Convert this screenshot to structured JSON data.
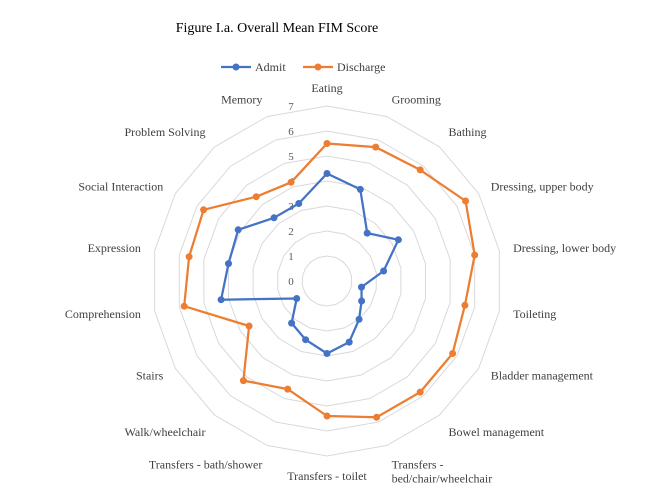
{
  "chart_data": {
    "type": "radar",
    "title": "Figure I.a. Overall Mean FIM Score",
    "categories": [
      [
        "Eating"
      ],
      [
        "Grooming"
      ],
      [
        "Bathing"
      ],
      [
        "Dressing, upper body"
      ],
      [
        "Dressing, lower body"
      ],
      [
        "Toileting"
      ],
      [
        "Bladder management"
      ],
      [
        "Bowel management"
      ],
      [
        "Transfers -",
        "bed/chair/wheelchair"
      ],
      [
        "Transfers - toilet"
      ],
      [
        "Transfers - bath/shower"
      ],
      [
        "Walk/wheelchair"
      ],
      [
        "Stairs"
      ],
      [
        "Comprehension"
      ],
      [
        "Expression"
      ],
      [
        "Social Interaction"
      ],
      [
        "Problem Solving"
      ],
      [
        "Memory"
      ]
    ],
    "ticks": [
      "0",
      "1",
      "2",
      "3",
      "4",
      "5",
      "6",
      "7"
    ],
    "rlim": [
      0,
      7
    ],
    "legend_position": "top",
    "series": [
      {
        "name": "Admit",
        "color": "#4472C4",
        "values": [
          4.3,
          3.9,
          2.5,
          3.3,
          2.3,
          1.4,
          1.6,
          2.0,
          2.6,
          2.9,
          2.5,
          2.2,
          1.4,
          4.3,
          4.0,
          4.1,
          3.3,
          3.3
        ]
      },
      {
        "name": "Discharge",
        "color": "#ED7D31",
        "values": [
          5.5,
          5.7,
          5.8,
          6.4,
          6.0,
          5.6,
          5.8,
          5.8,
          5.8,
          5.4,
          4.6,
          5.2,
          3.6,
          5.8,
          5.6,
          5.7,
          4.4,
          4.2
        ]
      }
    ],
    "grid": true
  }
}
